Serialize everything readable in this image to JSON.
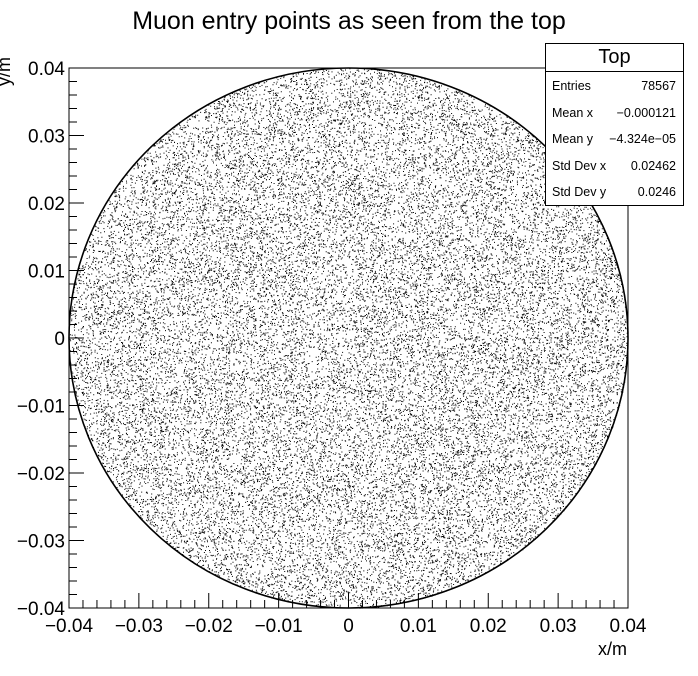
{
  "chart_data": {
    "type": "scatter",
    "title": "Muon entry points as seen from the top",
    "xlabel": "x/m",
    "ylabel": "y/m",
    "xlim": [
      -0.04,
      0.04
    ],
    "ylim": [
      -0.04,
      0.04
    ],
    "x_ticks": [
      "−0.04",
      "−0.03",
      "−0.02",
      "−0.01",
      "0",
      "0.01",
      "0.02",
      "0.03",
      "0.04"
    ],
    "y_ticks": [
      "−0.04",
      "−0.03",
      "−0.02",
      "−0.01",
      "0",
      "0.01",
      "0.02",
      "0.03",
      "0.04"
    ],
    "distribution": {
      "shape": "uniform disc",
      "center": [
        0,
        0
      ],
      "radius": 0.04,
      "points_drawn": 30000
    },
    "stats_box": {
      "title": "Top",
      "placement": "top-right",
      "rows": [
        {
          "label": "Entries",
          "value": "78567"
        },
        {
          "label": "Mean x",
          "value": "−0.000121"
        },
        {
          "label": "Mean y",
          "value": "−4.324e−05"
        },
        {
          "label": "Std Dev x",
          "value": "0.02462"
        },
        {
          "label": "Std Dev y",
          "value": "0.0246"
        }
      ]
    },
    "colors": {
      "points": "#000000",
      "background": "#ffffff",
      "frame": "#000000"
    },
    "grid": false
  }
}
